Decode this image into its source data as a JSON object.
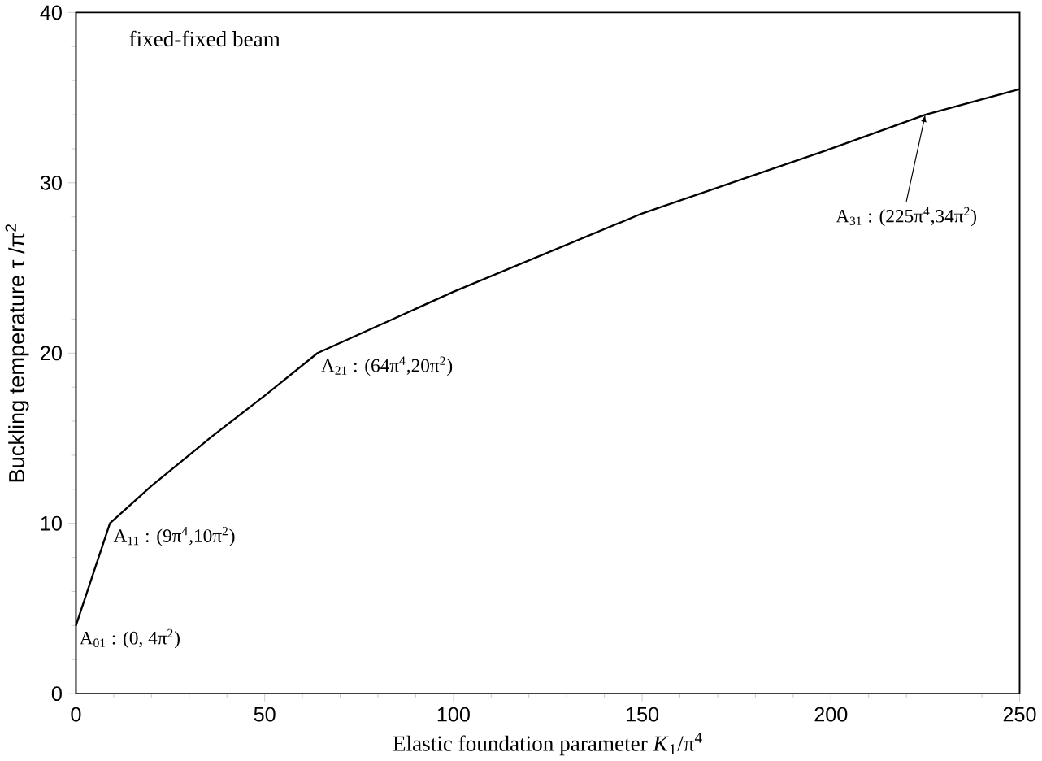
{
  "chart_data": {
    "type": "line",
    "xlabel": "Elastic foundation parameter  *K*$_{1}$/π$^{4}$",
    "ylabel": "Buckling temperature  τ /π$^{2}$",
    "x": [
      0,
      9,
      20,
      36,
      50,
      64,
      100,
      150,
      200,
      225,
      250
    ],
    "series": [
      {
        "color": "#000000",
        "values": [
          4,
          10,
          12.2,
          15.1,
          17.5,
          20,
          23.6,
          28.2,
          32,
          34,
          35.5
        ]
      }
    ],
    "xlim": [
      0,
      250
    ],
    "ylim": [
      0,
      40
    ],
    "xticks": [
      0,
      50,
      100,
      150,
      200,
      250
    ],
    "yticks": [
      0,
      10,
      20,
      30,
      40
    ],
    "grid": false,
    "marker": "none",
    "line_style": "solid",
    "annotations": [
      "fixed-fixed beam",
      {
        "text": "A$_{01}$ : (0, 4π$^{2}$)",
        "x": 0,
        "y": 4
      },
      {
        "text": "A$_{11}$ : (9π$^{4}$,10π$^{2}$)",
        "x": 9,
        "y": 10
      },
      {
        "text": "A$_{21}$ : (64π$^{4}$,20π$^{2}$)",
        "x": 64,
        "y": 20
      },
      {
        "text": "A$_{31}$ : (225π$^{4}$,34π$^{2}$)",
        "x": 225,
        "y": 34
      }
    ]
  }
}
